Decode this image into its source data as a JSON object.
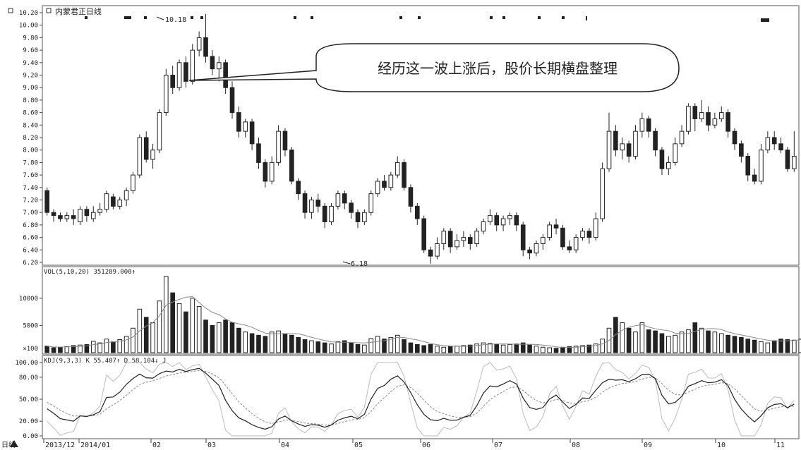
{
  "chart_data": {
    "type": "candlestick",
    "title": "内蒙君正日线",
    "annotation": "经历这一波上涨后，股价长期横盘整理",
    "price_axis": {
      "ticks": [
        "10.20",
        "10.00",
        "9.80",
        "9.60",
        "9.40",
        "9.20",
        "9.00",
        "8.80",
        "8.60",
        "8.40",
        "8.20",
        "8.00",
        "7.80",
        "7.60",
        "7.40",
        "7.20",
        "7.00",
        "6.80",
        "6.60",
        "6.40",
        "6.20"
      ],
      "range": [
        6.2,
        10.2
      ]
    },
    "high_label": "10.18",
    "low_label": "6.18",
    "volume_label": "VOL(5,10,20) 351289.000↑",
    "volume_axis": {
      "ticks": [
        "10000",
        "5000",
        "×100"
      ],
      "range": [
        0,
        14000
      ]
    },
    "kdj_label": "KDJ(9,3,3) K 55.407↑ D 58.104↓ J",
    "kdj_axis": {
      "ticks": [
        "100.00",
        "80.00",
        "50.00",
        "20.00",
        "0.00"
      ],
      "range": [
        0,
        100
      ]
    },
    "x_labels": [
      "2013/12",
      "2014/01",
      "02",
      "03",
      "04",
      "05",
      "06",
      "07",
      "08",
      "09",
      "10",
      "11"
    ],
    "bottom_left_label": "日线",
    "price_series": [
      [
        7.35,
        7.0,
        7.4,
        6.95
      ],
      [
        7.0,
        6.95,
        7.05,
        6.85
      ],
      [
        6.95,
        6.9,
        7.0,
        6.85
      ],
      [
        6.9,
        6.95,
        7.0,
        6.85
      ],
      [
        6.95,
        6.9,
        7.05,
        6.8
      ],
      [
        6.85,
        7.05,
        7.1,
        6.8
      ],
      [
        7.05,
        6.95,
        7.1,
        6.85
      ],
      [
        6.9,
        7.0,
        7.1,
        6.85
      ],
      [
        7.0,
        7.05,
        7.15,
        6.95
      ],
      [
        7.05,
        7.3,
        7.35,
        7.0
      ],
      [
        7.25,
        7.1,
        7.3,
        7.05
      ],
      [
        7.1,
        7.2,
        7.25,
        7.05
      ],
      [
        7.2,
        7.35,
        7.4,
        7.1
      ],
      [
        7.35,
        7.6,
        7.65,
        7.3
      ],
      [
        7.6,
        8.2,
        8.25,
        7.55
      ],
      [
        8.2,
        7.85,
        8.3,
        7.8
      ],
      [
        7.85,
        8.0,
        8.1,
        7.7
      ],
      [
        8.0,
        8.6,
        8.65,
        7.95
      ],
      [
        8.6,
        9.2,
        9.3,
        8.55
      ],
      [
        9.2,
        9.0,
        9.35,
        8.9
      ],
      [
        9.0,
        9.4,
        9.45,
        8.95
      ],
      [
        9.4,
        9.1,
        9.5,
        9.0
      ],
      [
        9.1,
        9.6,
        9.7,
        9.05
      ],
      [
        9.6,
        9.8,
        9.9,
        9.5
      ],
      [
        9.8,
        9.5,
        10.18,
        9.4
      ],
      [
        9.5,
        9.3,
        9.6,
        9.2
      ],
      [
        9.3,
        9.4,
        9.5,
        9.1
      ],
      [
        9.4,
        9.0,
        9.45,
        8.9
      ],
      [
        9.0,
        8.6,
        9.1,
        8.5
      ],
      [
        8.6,
        8.3,
        8.7,
        8.2
      ],
      [
        8.3,
        8.45,
        8.5,
        8.2
      ],
      [
        8.45,
        8.1,
        8.5,
        8.0
      ],
      [
        8.1,
        7.8,
        8.2,
        7.7
      ],
      [
        7.8,
        7.5,
        7.85,
        7.4
      ],
      [
        7.5,
        7.8,
        7.9,
        7.45
      ],
      [
        7.8,
        8.3,
        8.4,
        7.75
      ],
      [
        8.3,
        8.0,
        8.35,
        7.9
      ],
      [
        8.0,
        7.5,
        8.05,
        7.45
      ],
      [
        7.5,
        7.3,
        7.55,
        7.2
      ],
      [
        7.3,
        7.0,
        7.35,
        6.9
      ],
      [
        7.0,
        7.2,
        7.25,
        6.9
      ],
      [
        7.2,
        7.1,
        7.3,
        7.0
      ],
      [
        7.1,
        6.85,
        7.15,
        6.75
      ],
      [
        6.85,
        7.1,
        7.15,
        6.8
      ],
      [
        7.1,
        7.3,
        7.35,
        7.05
      ],
      [
        7.3,
        7.15,
        7.35,
        7.05
      ],
      [
        7.15,
        7.0,
        7.2,
        6.9
      ],
      [
        7.0,
        6.85,
        7.05,
        6.75
      ],
      [
        6.85,
        7.0,
        7.05,
        6.8
      ],
      [
        7.0,
        7.3,
        7.35,
        6.95
      ],
      [
        7.3,
        7.5,
        7.55,
        7.25
      ],
      [
        7.5,
        7.4,
        7.6,
        7.35
      ],
      [
        7.4,
        7.6,
        7.65,
        7.35
      ],
      [
        7.6,
        7.8,
        7.9,
        7.55
      ],
      [
        7.8,
        7.4,
        7.85,
        7.35
      ],
      [
        7.4,
        7.1,
        7.45,
        7.0
      ],
      [
        7.1,
        6.9,
        7.15,
        6.8
      ],
      [
        6.9,
        6.4,
        6.95,
        6.35
      ],
      [
        6.4,
        6.3,
        6.45,
        6.18
      ],
      [
        6.3,
        6.5,
        6.6,
        6.25
      ],
      [
        6.5,
        6.7,
        6.75,
        6.4
      ],
      [
        6.7,
        6.45,
        6.75,
        6.35
      ],
      [
        6.45,
        6.55,
        6.65,
        6.4
      ],
      [
        6.55,
        6.6,
        6.7,
        6.45
      ],
      [
        6.6,
        6.5,
        6.65,
        6.4
      ],
      [
        6.5,
        6.7,
        6.75,
        6.45
      ],
      [
        6.7,
        6.85,
        6.9,
        6.65
      ],
      [
        6.85,
        6.95,
        7.05,
        6.8
      ],
      [
        6.95,
        6.8,
        7.0,
        6.7
      ],
      [
        6.8,
        6.9,
        6.95,
        6.7
      ],
      [
        6.9,
        6.95,
        7.0,
        6.8
      ],
      [
        6.95,
        6.8,
        7.0,
        6.7
      ],
      [
        6.8,
        6.4,
        6.85,
        6.3
      ],
      [
        6.4,
        6.35,
        6.45,
        6.25
      ],
      [
        6.35,
        6.5,
        6.55,
        6.3
      ],
      [
        6.5,
        6.6,
        6.65,
        6.4
      ],
      [
        6.6,
        6.8,
        6.85,
        6.55
      ],
      [
        6.8,
        6.75,
        6.9,
        6.65
      ],
      [
        6.75,
        6.45,
        6.8,
        6.4
      ],
      [
        6.45,
        6.4,
        6.55,
        6.35
      ],
      [
        6.4,
        6.6,
        6.65,
        6.35
      ],
      [
        6.6,
        6.7,
        6.75,
        6.55
      ],
      [
        6.7,
        6.6,
        6.75,
        6.5
      ],
      [
        6.6,
        6.9,
        7.0,
        6.55
      ],
      [
        6.9,
        7.7,
        7.8,
        6.85
      ],
      [
        7.7,
        8.3,
        8.6,
        7.65
      ],
      [
        8.3,
        8.0,
        8.4,
        7.9
      ],
      [
        8.0,
        8.1,
        8.2,
        7.85
      ],
      [
        8.1,
        7.9,
        8.15,
        7.8
      ],
      [
        7.9,
        8.3,
        8.4,
        7.85
      ],
      [
        8.3,
        8.5,
        8.6,
        8.2
      ],
      [
        8.5,
        8.3,
        8.55,
        8.2
      ],
      [
        8.3,
        8.0,
        8.35,
        7.9
      ],
      [
        8.0,
        7.7,
        8.05,
        7.6
      ],
      [
        7.7,
        7.8,
        7.9,
        7.6
      ],
      [
        7.8,
        8.1,
        8.2,
        7.75
      ],
      [
        8.1,
        8.3,
        8.4,
        8.05
      ],
      [
        8.3,
        8.7,
        8.75,
        8.25
      ],
      [
        8.7,
        8.5,
        8.75,
        8.3
      ],
      [
        8.5,
        8.6,
        8.8,
        8.45
      ],
      [
        8.6,
        8.4,
        8.7,
        8.3
      ],
      [
        8.4,
        8.5,
        8.6,
        8.35
      ],
      [
        8.5,
        8.6,
        8.7,
        8.45
      ],
      [
        8.6,
        8.3,
        8.65,
        8.2
      ],
      [
        8.3,
        8.1,
        8.35,
        8.0
      ],
      [
        8.1,
        7.9,
        8.15,
        7.8
      ],
      [
        7.9,
        7.6,
        7.95,
        7.5
      ],
      [
        7.6,
        7.5,
        7.7,
        7.45
      ],
      [
        7.5,
        8.0,
        8.1,
        7.45
      ],
      [
        8.0,
        8.2,
        8.3,
        7.95
      ],
      [
        8.2,
        8.1,
        8.3,
        8.0
      ],
      [
        8.1,
        8.0,
        8.2,
        7.95
      ],
      [
        8.0,
        7.7,
        8.05,
        7.65
      ],
      [
        7.7,
        7.9,
        8.3,
        7.65
      ]
    ],
    "volume_series": [
      1200,
      900,
      1000,
      1100,
      1300,
      1400,
      1500,
      2100,
      1800,
      2500,
      2000,
      2400,
      3000,
      4500,
      8000,
      6500,
      5500,
      9500,
      14000,
      11000,
      9000,
      7500,
      10000,
      8500,
      6000,
      5000,
      5500,
      6000,
      5500,
      4500,
      3800,
      3500,
      3200,
      3000,
      3800,
      4000,
      3500,
      3200,
      2800,
      2400,
      2200,
      2000,
      1800,
      1600,
      2000,
      2200,
      1800,
      1500,
      1400,
      2600,
      3000,
      2500,
      2800,
      3200,
      2400,
      1800,
      1500,
      1300,
      1500,
      1200,
      1000,
      1100,
      1200,
      1300,
      1400,
      1600,
      1800,
      1700,
      1500,
      1400,
      1500,
      1600,
      1800,
      1400,
      1200,
      1000,
      900,
      800,
      1000,
      1100,
      1200,
      1300,
      1400,
      1600,
      2500,
      4500,
      6500,
      5500,
      4500,
      3800,
      5500,
      4200,
      4000,
      3500,
      3000,
      3200,
      3800,
      4200,
      5500,
      4500,
      4000,
      3800,
      3500,
      3200,
      3000,
      2800,
      2500,
      2300,
      2000,
      1800,
      2200,
      2500,
      2400,
      2300,
      2500
    ]
  }
}
